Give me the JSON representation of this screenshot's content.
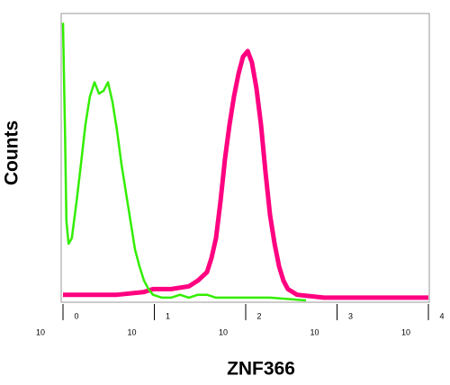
{
  "chart_data": {
    "type": "histogram-overlay",
    "x_label": "ZNF366",
    "y_label": "Counts",
    "xscale": "log",
    "xlim": [
      1,
      10000
    ],
    "ylim": [
      0,
      100
    ],
    "xticks": [
      {
        "value": 1,
        "label": "10",
        "exponent": "0"
      },
      {
        "value": 10,
        "label": "10",
        "exponent": "1"
      },
      {
        "value": 100,
        "label": "10",
        "exponent": "2"
      },
      {
        "value": 1000,
        "label": "10",
        "exponent": "3"
      },
      {
        "value": 10000,
        "label": "10",
        "exponent": "4"
      }
    ],
    "series": [
      {
        "color": "#ff0080",
        "width": 5,
        "x": [
          1.0,
          1.97,
          3.9,
          7.7,
          9.66,
          15.2,
          23.9,
          30.0,
          37.7,
          42.2,
          47.3,
          53.0,
          59.3,
          66.5,
          74.5,
          83.4,
          93.4,
          105,
          117,
          131,
          147,
          165,
          185,
          207,
          232,
          259,
          290,
          365,
          719,
          1783,
          10000
        ],
        "values": [
          2,
          2,
          2,
          3,
          4,
          4,
          5,
          7,
          10,
          15,
          22,
          35,
          50,
          62,
          72,
          80,
          86,
          88,
          84,
          75,
          62,
          45,
          30,
          20,
          12,
          7,
          4,
          2,
          1,
          1,
          1
        ]
      },
      {
        "color": "#33ee00",
        "width": 2.5,
        "x": [
          1.0,
          1.05,
          1.09,
          1.15,
          1.25,
          1.41,
          1.57,
          1.76,
          1.97,
          2.21,
          2.48,
          2.78,
          3.11,
          3.48,
          3.9,
          4.37,
          4.89,
          5.48,
          6.14,
          6.88,
          7.7,
          8.63,
          9.66,
          12.1,
          15.2,
          19.1,
          23.9,
          30.0,
          37.7,
          47.3,
          74.5,
          185,
          290,
          457
        ],
        "values": [
          98,
          60,
          28,
          20,
          22,
          35,
          48,
          62,
          72,
          77,
          73,
          74,
          77,
          70,
          60,
          48,
          38,
          28,
          18,
          12,
          7,
          4,
          2,
          1,
          1,
          2,
          1,
          2,
          2,
          1,
          1,
          1,
          0.5,
          0
        ]
      }
    ]
  }
}
